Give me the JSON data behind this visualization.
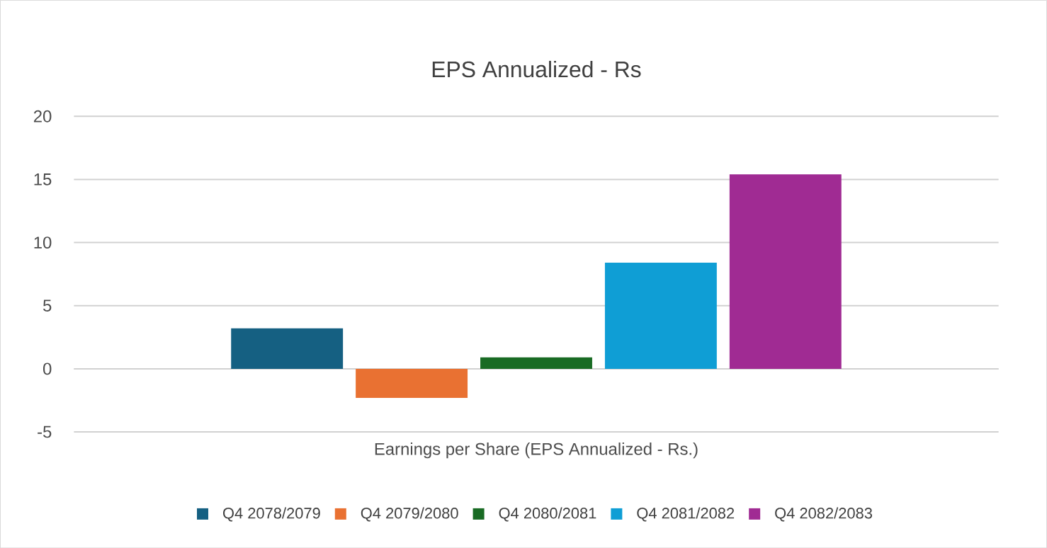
{
  "chart_data": {
    "type": "bar",
    "title": "EPS Annualized - Rs",
    "categories": [
      "Earnings per Share (EPS Annualized - Rs.)"
    ],
    "series": [
      {
        "name": "Q4 2078/2079",
        "color": "#156082",
        "values": [
          3.2
        ]
      },
      {
        "name": "Q4 2079/2080",
        "color": "#e97132",
        "values": [
          -2.3
        ]
      },
      {
        "name": "Q4 2080/2081",
        "color": "#196b24",
        "values": [
          0.9
        ]
      },
      {
        "name": "Q4 2081/2082",
        "color": "#0f9ed5",
        "values": [
          8.4
        ]
      },
      {
        "name": "Q4 2082/2083",
        "color": "#a02b93",
        "values": [
          15.4
        ]
      }
    ],
    "ylim": [
      -5,
      20
    ],
    "yticks": [
      -5,
      0,
      5,
      10,
      15,
      20
    ],
    "grid": "y",
    "legend": "bottom"
  }
}
